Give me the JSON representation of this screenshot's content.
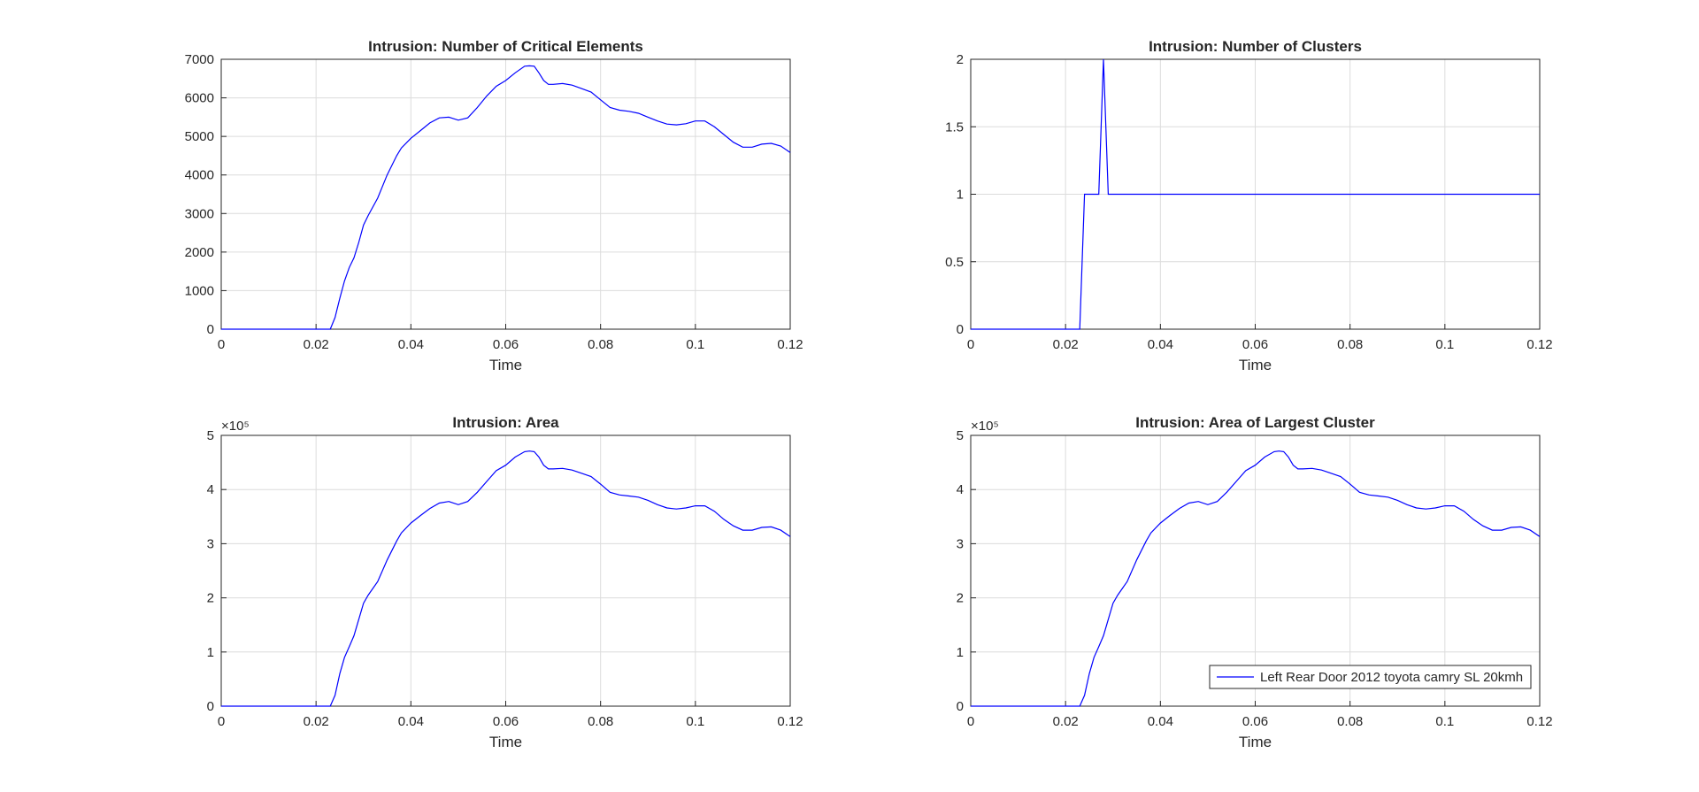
{
  "chart_data": [
    {
      "type": "line",
      "title": "Intrusion: Number of Critical Elements",
      "xlabel": "Time",
      "ylabel": "",
      "xlim": [
        0,
        0.12
      ],
      "ylim": [
        0,
        7000
      ],
      "xticks": [
        0,
        0.02,
        0.04,
        0.06,
        0.08,
        0.1,
        0.12
      ],
      "xtick_labels": [
        "0",
        "0.02",
        "0.04",
        "0.06",
        "0.08",
        "0.1",
        "0.12"
      ],
      "yticks": [
        0,
        1000,
        2000,
        3000,
        4000,
        5000,
        6000,
        7000
      ],
      "ytick_labels": [
        "0",
        "1000",
        "2000",
        "3000",
        "4000",
        "5000",
        "6000",
        "7000"
      ],
      "exponent_label": "",
      "grid": true,
      "series": [
        {
          "color": "#0000ff",
          "x": [
            0,
            0.02,
            0.023,
            0.024,
            0.025,
            0.026,
            0.027,
            0.028,
            0.029,
            0.03,
            0.031,
            0.033,
            0.035,
            0.037,
            0.038,
            0.04,
            0.042,
            0.044,
            0.046,
            0.048,
            0.05,
            0.052,
            0.054,
            0.056,
            0.058,
            0.06,
            0.062,
            0.064,
            0.065,
            0.066,
            0.067,
            0.068,
            0.069,
            0.07,
            0.072,
            0.074,
            0.076,
            0.078,
            0.08,
            0.082,
            0.084,
            0.086,
            0.088,
            0.09,
            0.092,
            0.094,
            0.096,
            0.098,
            0.1,
            0.102,
            0.104,
            0.106,
            0.108,
            0.11,
            0.112,
            0.114,
            0.116,
            0.118,
            0.12
          ],
          "y": [
            0,
            0,
            0,
            300,
            800,
            1250,
            1600,
            1850,
            2250,
            2700,
            2950,
            3400,
            4000,
            4500,
            4700,
            4950,
            5150,
            5350,
            5480,
            5500,
            5420,
            5480,
            5750,
            6050,
            6300,
            6450,
            6650,
            6820,
            6830,
            6820,
            6650,
            6450,
            6350,
            6350,
            6370,
            6330,
            6240,
            6150,
            5950,
            5750,
            5680,
            5650,
            5600,
            5500,
            5400,
            5320,
            5300,
            5330,
            5400,
            5400,
            5250,
            5050,
            4850,
            4720,
            4720,
            4800,
            4820,
            4750,
            4580
          ]
        }
      ]
    },
    {
      "type": "line",
      "title": "Intrusion: Number of Clusters",
      "xlabel": "Time",
      "ylabel": "",
      "xlim": [
        0,
        0.12
      ],
      "ylim": [
        0,
        2
      ],
      "xticks": [
        0,
        0.02,
        0.04,
        0.06,
        0.08,
        0.1,
        0.12
      ],
      "xtick_labels": [
        "0",
        "0.02",
        "0.04",
        "0.06",
        "0.08",
        "0.1",
        "0.12"
      ],
      "yticks": [
        0,
        0.5,
        1,
        1.5,
        2
      ],
      "ytick_labels": [
        "0",
        "0.5",
        "1",
        "1.5",
        "2"
      ],
      "exponent_label": "",
      "grid": true,
      "series": [
        {
          "color": "#0000ff",
          "x": [
            0,
            0.02,
            0.023,
            0.024,
            0.027,
            0.028,
            0.029,
            0.12
          ],
          "y": [
            0,
            0,
            0,
            1,
            1,
            2,
            1,
            1
          ]
        }
      ]
    },
    {
      "type": "line",
      "title": "Intrusion: Area",
      "xlabel": "Time",
      "ylabel": "",
      "xlim": [
        0,
        0.12
      ],
      "ylim": [
        0,
        5
      ],
      "xticks": [
        0,
        0.02,
        0.04,
        0.06,
        0.08,
        0.1,
        0.12
      ],
      "xtick_labels": [
        "0",
        "0.02",
        "0.04",
        "0.06",
        "0.08",
        "0.1",
        "0.12"
      ],
      "yticks": [
        0,
        1,
        2,
        3,
        4,
        5
      ],
      "ytick_labels": [
        "0",
        "1",
        "2",
        "3",
        "4",
        "5"
      ],
      "exponent_label": "×10⁵",
      "grid": true,
      "series": [
        {
          "color": "#0000ff",
          "x": [
            0,
            0.02,
            0.023,
            0.024,
            0.025,
            0.026,
            0.027,
            0.028,
            0.029,
            0.03,
            0.031,
            0.033,
            0.035,
            0.037,
            0.038,
            0.04,
            0.042,
            0.044,
            0.046,
            0.048,
            0.05,
            0.052,
            0.054,
            0.056,
            0.058,
            0.06,
            0.062,
            0.064,
            0.065,
            0.066,
            0.067,
            0.068,
            0.069,
            0.07,
            0.072,
            0.074,
            0.076,
            0.078,
            0.08,
            0.082,
            0.084,
            0.086,
            0.088,
            0.09,
            0.092,
            0.094,
            0.096,
            0.098,
            0.1,
            0.102,
            0.104,
            0.106,
            0.108,
            0.11,
            0.112,
            0.114,
            0.116,
            0.118,
            0.12
          ],
          "y": [
            0,
            0,
            0,
            0.2,
            0.6,
            0.9,
            1.1,
            1.3,
            1.6,
            1.9,
            2.05,
            2.3,
            2.7,
            3.05,
            3.2,
            3.38,
            3.52,
            3.65,
            3.75,
            3.78,
            3.72,
            3.78,
            3.95,
            4.15,
            4.35,
            4.45,
            4.6,
            4.7,
            4.71,
            4.7,
            4.6,
            4.45,
            4.38,
            4.38,
            4.39,
            4.36,
            4.3,
            4.24,
            4.1,
            3.95,
            3.9,
            3.88,
            3.86,
            3.8,
            3.72,
            3.66,
            3.64,
            3.66,
            3.7,
            3.7,
            3.6,
            3.45,
            3.33,
            3.25,
            3.25,
            3.3,
            3.31,
            3.25,
            3.13
          ]
        }
      ]
    },
    {
      "type": "line",
      "title": "Intrusion: Area of Largest Cluster",
      "xlabel": "Time",
      "ylabel": "",
      "xlim": [
        0,
        0.12
      ],
      "ylim": [
        0,
        5
      ],
      "xticks": [
        0,
        0.02,
        0.04,
        0.06,
        0.08,
        0.1,
        0.12
      ],
      "xtick_labels": [
        "0",
        "0.02",
        "0.04",
        "0.06",
        "0.08",
        "0.1",
        "0.12"
      ],
      "yticks": [
        0,
        1,
        2,
        3,
        4,
        5
      ],
      "ytick_labels": [
        "0",
        "1",
        "2",
        "3",
        "4",
        "5"
      ],
      "exponent_label": "×10⁵",
      "grid": true,
      "legend": {
        "location": "bottom-right",
        "entries": [
          "Left Rear Door 2012 toyota camry SL 20kmh"
        ]
      },
      "series": [
        {
          "name": "Left Rear Door 2012 toyota camry SL 20kmh",
          "color": "#0000ff",
          "x": [
            0,
            0.02,
            0.023,
            0.024,
            0.025,
            0.026,
            0.027,
            0.028,
            0.029,
            0.03,
            0.031,
            0.033,
            0.035,
            0.037,
            0.038,
            0.04,
            0.042,
            0.044,
            0.046,
            0.048,
            0.05,
            0.052,
            0.054,
            0.056,
            0.058,
            0.06,
            0.062,
            0.064,
            0.065,
            0.066,
            0.067,
            0.068,
            0.069,
            0.07,
            0.072,
            0.074,
            0.076,
            0.078,
            0.08,
            0.082,
            0.084,
            0.086,
            0.088,
            0.09,
            0.092,
            0.094,
            0.096,
            0.098,
            0.1,
            0.102,
            0.104,
            0.106,
            0.108,
            0.11,
            0.112,
            0.114,
            0.116,
            0.118,
            0.12
          ],
          "y": [
            0,
            0,
            0,
            0.2,
            0.6,
            0.9,
            1.1,
            1.3,
            1.6,
            1.9,
            2.05,
            2.3,
            2.7,
            3.05,
            3.2,
            3.38,
            3.52,
            3.65,
            3.75,
            3.78,
            3.72,
            3.78,
            3.95,
            4.15,
            4.35,
            4.45,
            4.6,
            4.7,
            4.71,
            4.7,
            4.6,
            4.45,
            4.38,
            4.38,
            4.39,
            4.36,
            4.3,
            4.24,
            4.1,
            3.95,
            3.9,
            3.88,
            3.86,
            3.8,
            3.72,
            3.66,
            3.64,
            3.66,
            3.7,
            3.7,
            3.6,
            3.45,
            3.33,
            3.25,
            3.25,
            3.3,
            3.31,
            3.25,
            3.13
          ]
        }
      ]
    }
  ]
}
